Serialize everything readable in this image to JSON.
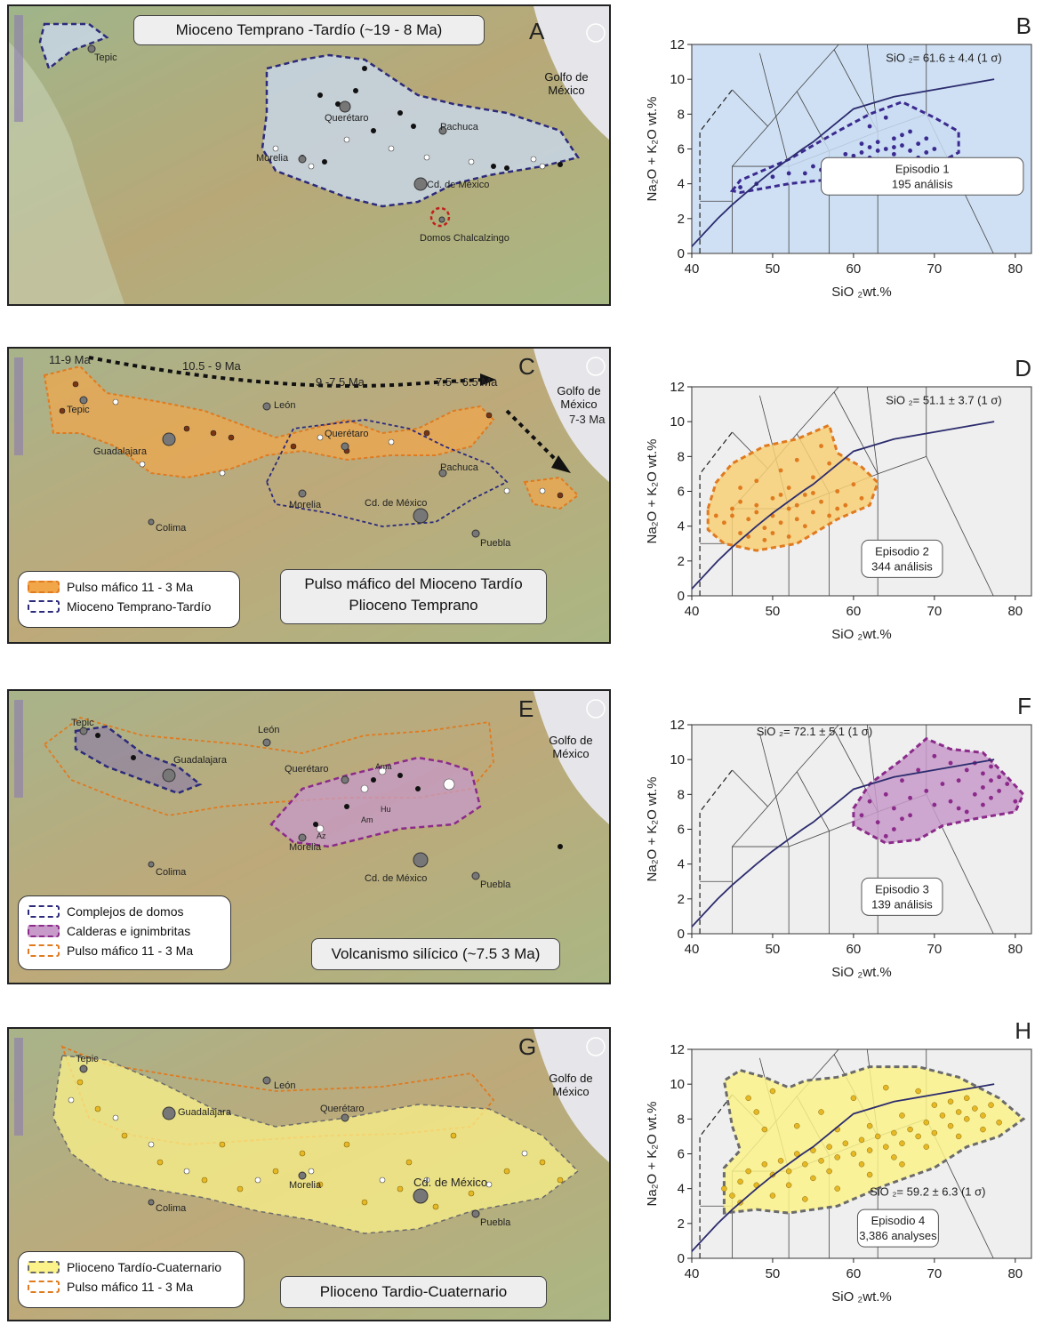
{
  "gulf_label": "Golfo de México",
  "panels": [
    {
      "letter": "A",
      "title": "Mioceno Temprano -Tardío (~19 - 8 Ma)",
      "cities": [
        "Tepic",
        "Querétaro",
        "Pachuca",
        "Morelia",
        "Cd. de México",
        "Domos Chalcalzingo"
      ],
      "legend": []
    },
    {
      "letter": "C",
      "title": "Pulso máfico del Mioceno Tardío\nPlioceno Temprano",
      "cities": [
        "Tepic",
        "León",
        "Guadalajara",
        "Querétaro",
        "Pachuca",
        "Morelia",
        "Cd. de México",
        "Colima",
        "Puebla"
      ],
      "age_labels": [
        "11-9 Ma",
        "10.5 - 9 Ma",
        "9 -7.5 Ma",
        "7.5 - 6.5 Ma",
        "7-3 Ma"
      ],
      "legend": [
        "Pulso máfico 11 - 3 Ma",
        "Mioceno Temprano-Tardío"
      ]
    },
    {
      "letter": "E",
      "title": "Volcanismo silícico (~7.5  3 Ma)",
      "cities": [
        "Tepic",
        "León",
        "Guadalajara",
        "Querétaro",
        "Ama",
        "Hu",
        "Am",
        "Az",
        "Morelia",
        "Cd. de México",
        "Colima",
        "Puebla"
      ],
      "legend": [
        "Complejos de domos",
        "Calderas e ignimbritas",
        "Pulso máfico 11 - 3 Ma"
      ]
    },
    {
      "letter": "G",
      "title": "Plioceno Tardio-Cuaternario",
      "cities": [
        "Tepic",
        "León",
        "Guadalajara",
        "Querétaro",
        "Morelia",
        "Cd. de México",
        "Colima",
        "Puebla"
      ],
      "legend": [
        "Plioceno Tardío-Cuaternario",
        "Pulso máfico 11 - 3 Ma"
      ]
    }
  ],
  "colors": {
    "episode1": "#3b2a8f",
    "episode2": "#e07a1f",
    "episode3": "#8b2a8a",
    "episode4": "#6b6b6b",
    "fill1": "#c9dcf2",
    "fill2": "#f7cf76",
    "fill3": "#c79ac9",
    "fill4": "#fbf28a",
    "dot4": "#e5b824",
    "alkaline_line": "#2c2c6e"
  },
  "chart_data": [
    {
      "type": "scatter",
      "letter": "B",
      "xlabel": "SiO ₂wt.%",
      "ylabel": "Na₂O + K₂O  wt.%",
      "xlim": [
        40,
        82
      ],
      "ylim": [
        0,
        12
      ],
      "xticks": [
        40,
        50,
        60,
        70,
        80
      ],
      "yticks": [
        0,
        2,
        4,
        6,
        8,
        10,
        12
      ],
      "annotation": "SiO ₂= 61.6 ± 4.4 (1    σ)",
      "episode": "Episodio 1",
      "count": "195 análisis",
      "envelope": [
        [
          45,
          3.6
        ],
        [
          46,
          4.2
        ],
        [
          52,
          5.4
        ],
        [
          58,
          7.0
        ],
        [
          62,
          8.0
        ],
        [
          66,
          8.7
        ],
        [
          70,
          7.8
        ],
        [
          73,
          7.0
        ],
        [
          73,
          5.8
        ],
        [
          69,
          4.8
        ],
        [
          64,
          4.6
        ],
        [
          58,
          4.3
        ],
        [
          52,
          4.0
        ],
        [
          46,
          3.5
        ]
      ],
      "points": [
        [
          46,
          3.8
        ],
        [
          48,
          4.0
        ],
        [
          50,
          4.4
        ],
        [
          52,
          4.6
        ],
        [
          55,
          5.0
        ],
        [
          58,
          5.4
        ],
        [
          60,
          5.6
        ],
        [
          61,
          5.8
        ],
        [
          62,
          5.5
        ],
        [
          63,
          5.9
        ],
        [
          64,
          6.0
        ],
        [
          65,
          5.7
        ],
        [
          66,
          6.2
        ],
        [
          67,
          5.9
        ],
        [
          68,
          6.3
        ],
        [
          69,
          5.8
        ],
        [
          60,
          5.1
        ],
        [
          58,
          5.0
        ],
        [
          63,
          6.4
        ],
        [
          65,
          6.6
        ],
        [
          67,
          7.0
        ],
        [
          62,
          7.3
        ],
        [
          64,
          7.8
        ],
        [
          61,
          5.3
        ],
        [
          57,
          5.2
        ],
        [
          66,
          5.4
        ],
        [
          69,
          6.6
        ],
        [
          70,
          6.0
        ],
        [
          56,
          4.8
        ],
        [
          54,
          4.6
        ],
        [
          62,
          6.1
        ],
        [
          64,
          5.3
        ],
        [
          66,
          6.8
        ],
        [
          68,
          5.5
        ],
        [
          59,
          5.7
        ],
        [
          61,
          6.3
        ],
        [
          63,
          5.1
        ],
        [
          65,
          6.1
        ]
      ]
    },
    {
      "type": "scatter",
      "letter": "D",
      "xlabel": "SiO ₂wt.%",
      "ylabel": "Na₂O + K₂O  wt.%",
      "xlim": [
        40,
        82
      ],
      "ylim": [
        0,
        12
      ],
      "xticks": [
        40,
        50,
        60,
        70,
        80
      ],
      "yticks": [
        0,
        2,
        4,
        6,
        8,
        10,
        12
      ],
      "annotation": "SiO ₂= 51.1 ± 3.7 (1    σ)",
      "episode": "Episodio 2",
      "count": "344 análisis",
      "envelope": [
        [
          42,
          5.0
        ],
        [
          43,
          6.5
        ],
        [
          45,
          7.6
        ],
        [
          49,
          8.6
        ],
        [
          53,
          9.0
        ],
        [
          57,
          9.8
        ],
        [
          58,
          8.2
        ],
        [
          61,
          7.4
        ],
        [
          63,
          6.5
        ],
        [
          62,
          5.2
        ],
        [
          58,
          4.4
        ],
        [
          53,
          3.0
        ],
        [
          48,
          2.6
        ],
        [
          44,
          3.0
        ],
        [
          42,
          3.8
        ]
      ],
      "points": [
        [
          44,
          4.2
        ],
        [
          45,
          5.0
        ],
        [
          46,
          3.6
        ],
        [
          47,
          4.4
        ],
        [
          48,
          5.2
        ],
        [
          49,
          3.9
        ],
        [
          50,
          4.6
        ],
        [
          50,
          5.6
        ],
        [
          51,
          4.2
        ],
        [
          52,
          5.0
        ],
        [
          52,
          6.2
        ],
        [
          53,
          4.4
        ],
        [
          54,
          5.8
        ],
        [
          55,
          4.8
        ],
        [
          55,
          6.8
        ],
        [
          56,
          5.4
        ],
        [
          57,
          7.6
        ],
        [
          57,
          4.6
        ],
        [
          58,
          6.0
        ],
        [
          59,
          5.2
        ],
        [
          60,
          6.4
        ],
        [
          61,
          5.6
        ],
        [
          48,
          6.6
        ],
        [
          46,
          6.2
        ],
        [
          51,
          7.2
        ],
        [
          53,
          7.8
        ],
        [
          49,
          3.2
        ],
        [
          47,
          3.4
        ],
        [
          56,
          8.6
        ],
        [
          50,
          3.6
        ],
        [
          45,
          4.6
        ],
        [
          52,
          3.4
        ],
        [
          54,
          4.0
        ],
        [
          58,
          5.0
        ],
        [
          46,
          5.4
        ],
        [
          43,
          4.6
        ],
        [
          48,
          4.8
        ],
        [
          51,
          5.8
        ],
        [
          53,
          5.2
        ],
        [
          55,
          5.9
        ]
      ]
    },
    {
      "type": "scatter",
      "letter": "F",
      "xlabel": "SiO ₂wt.%",
      "ylabel": "Na₂O + K₂O  wt.%",
      "xlim": [
        40,
        82
      ],
      "ylim": [
        0,
        12
      ],
      "xticks": [
        40,
        50,
        60,
        70,
        80
      ],
      "yticks": [
        0,
        2,
        4,
        6,
        8,
        10,
        12
      ],
      "annotation": "SiO ₂= 72.1 ± 5.1 (1    σ)",
      "episode": "Episodio 3",
      "count": "139 análisis",
      "envelope": [
        [
          60,
          7.2
        ],
        [
          62,
          8.6
        ],
        [
          66,
          10.0
        ],
        [
          69,
          11.2
        ],
        [
          72,
          10.6
        ],
        [
          76,
          10.4
        ],
        [
          79,
          9.0
        ],
        [
          81,
          8.0
        ],
        [
          80,
          7.0
        ],
        [
          75,
          6.6
        ],
        [
          71,
          6.2
        ],
        [
          68,
          5.4
        ],
        [
          64,
          5.2
        ],
        [
          60,
          6.2
        ]
      ],
      "points": [
        [
          61,
          6.8
        ],
        [
          62,
          7.6
        ],
        [
          63,
          6.4
        ],
        [
          64,
          8.0
        ],
        [
          65,
          7.2
        ],
        [
          66,
          6.6
        ],
        [
          66,
          8.8
        ],
        [
          67,
          7.8
        ],
        [
          68,
          9.4
        ],
        [
          69,
          8.2
        ],
        [
          70,
          10.2
        ],
        [
          71,
          8.6
        ],
        [
          72,
          7.6
        ],
        [
          73,
          8.8
        ],
        [
          74,
          9.4
        ],
        [
          75,
          8.0
        ],
        [
          76,
          9.2
        ],
        [
          76,
          8.4
        ],
        [
          77,
          9.6
        ],
        [
          77,
          8.8
        ],
        [
          78,
          9.0
        ],
        [
          78,
          8.2
        ],
        [
          79,
          8.6
        ],
        [
          80,
          7.6
        ],
        [
          76,
          7.4
        ],
        [
          74,
          7.0
        ],
        [
          72,
          9.8
        ],
        [
          65,
          6.0
        ],
        [
          67,
          6.8
        ],
        [
          70,
          7.4
        ],
        [
          73,
          7.2
        ],
        [
          75,
          9.8
        ],
        [
          77,
          7.8
        ],
        [
          64,
          5.6
        ]
      ]
    },
    {
      "type": "scatter",
      "letter": "H",
      "xlabel": "SiO ₂wt.%",
      "ylabel": "Na₂O + K₂O  wt.%",
      "xlim": [
        40,
        82
      ],
      "ylim": [
        0,
        12
      ],
      "xticks": [
        40,
        50,
        60,
        70,
        80
      ],
      "yticks": [
        0,
        2,
        4,
        6,
        8,
        10,
        12
      ],
      "annotation": "SiO ₂= 59.2 ± 6.3 (1    σ)",
      "episode": "Episodio 4",
      "count": "3,386 analyses",
      "envelope": [
        [
          44,
          2.6
        ],
        [
          44,
          5.2
        ],
        [
          46,
          6.2
        ],
        [
          45,
          7.6
        ],
        [
          44,
          10.2
        ],
        [
          46,
          10.8
        ],
        [
          49,
          10.4
        ],
        [
          52,
          9.8
        ],
        [
          54,
          10.2
        ],
        [
          58,
          10.4
        ],
        [
          62,
          11.0
        ],
        [
          68,
          11.0
        ],
        [
          73,
          10.4
        ],
        [
          78,
          9.2
        ],
        [
          81,
          8.0
        ],
        [
          78,
          7.0
        ],
        [
          74,
          6.4
        ],
        [
          70,
          5.2
        ],
        [
          64,
          4.2
        ],
        [
          58,
          3.0
        ],
        [
          52,
          2.6
        ],
        [
          48,
          2.8
        ]
      ],
      "points": [
        [
          45,
          3.6
        ],
        [
          46,
          4.4
        ],
        [
          47,
          5.0
        ],
        [
          48,
          4.2
        ],
        [
          49,
          5.4
        ],
        [
          50,
          4.8
        ],
        [
          51,
          5.6
        ],
        [
          52,
          5.0
        ],
        [
          53,
          6.0
        ],
        [
          54,
          5.4
        ],
        [
          55,
          6.2
        ],
        [
          56,
          5.6
        ],
        [
          57,
          6.4
        ],
        [
          58,
          5.8
        ],
        [
          59,
          6.6
        ],
        [
          60,
          6.0
        ],
        [
          61,
          6.8
        ],
        [
          62,
          6.2
        ],
        [
          63,
          7.0
        ],
        [
          64,
          6.4
        ],
        [
          65,
          7.2
        ],
        [
          66,
          6.6
        ],
        [
          67,
          7.4
        ],
        [
          68,
          7.0
        ],
        [
          69,
          7.8
        ],
        [
          70,
          7.2
        ],
        [
          71,
          8.2
        ],
        [
          72,
          7.6
        ],
        [
          73,
          8.4
        ],
        [
          74,
          8.0
        ],
        [
          75,
          8.6
        ],
        [
          76,
          8.2
        ],
        [
          77,
          8.8
        ],
        [
          78,
          7.8
        ],
        [
          48,
          8.4
        ],
        [
          47,
          9.2
        ],
        [
          50,
          9.6
        ],
        [
          49,
          7.4
        ],
        [
          52,
          4.2
        ],
        [
          55,
          4.6
        ],
        [
          58,
          4.0
        ],
        [
          62,
          4.8
        ],
        [
          66,
          5.4
        ],
        [
          46,
          3.2
        ],
        [
          44,
          4.0
        ],
        [
          60,
          9.2
        ],
        [
          64,
          9.8
        ],
        [
          68,
          9.6
        ],
        [
          72,
          9.0
        ],
        [
          56,
          8.4
        ],
        [
          53,
          7.6
        ],
        [
          58,
          7.4
        ],
        [
          62,
          7.6
        ],
        [
          66,
          8.2
        ],
        [
          70,
          8.8
        ],
        [
          74,
          9.2
        ],
        [
          76,
          7.4
        ],
        [
          50,
          3.6
        ],
        [
          54,
          3.4
        ],
        [
          57,
          5.0
        ],
        [
          61,
          5.4
        ],
        [
          65,
          5.8
        ],
        [
          69,
          6.4
        ],
        [
          73,
          7.0
        ]
      ]
    }
  ]
}
